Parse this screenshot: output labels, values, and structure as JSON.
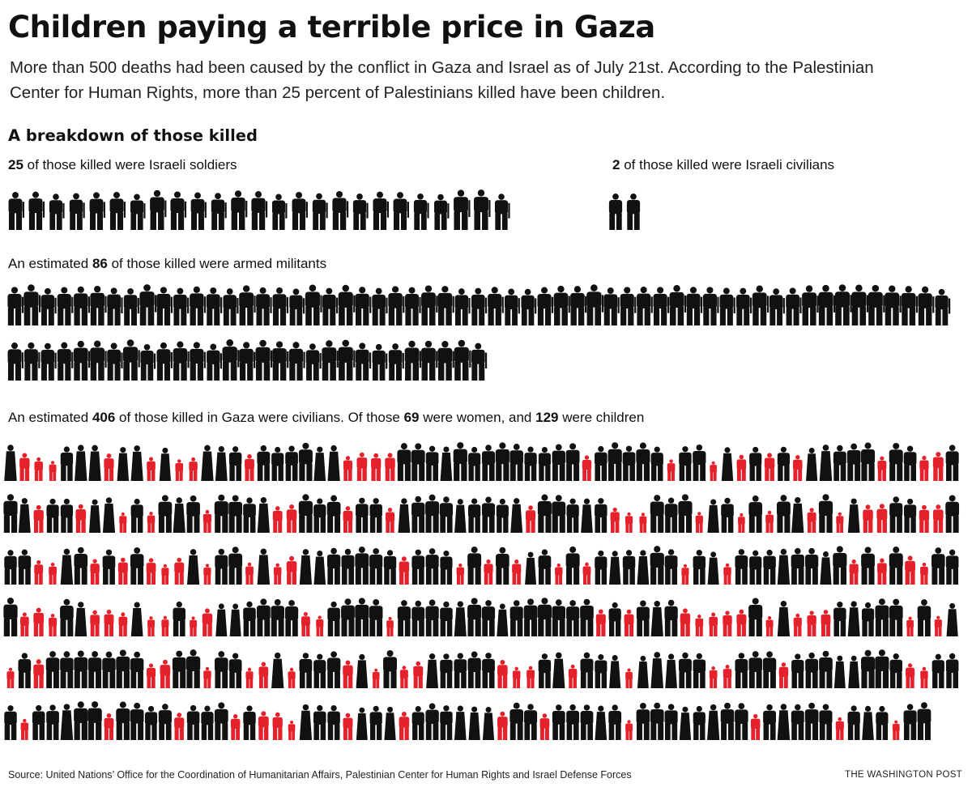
{
  "title": "Children paying a terrible price in Gaza",
  "subtitle_lines": [
    "More than 500 deaths had been caused by the conflict in Gaza and Israel as of July 21st. According to the Palestinian",
    "Center for Human Rights, more than 25 percent of Palestinians killed have been children."
  ],
  "section_heading": "A breakdown of those killed",
  "groups": {
    "soldiers": {
      "count": "25",
      "text": " of those killed were Israeli soldiers"
    },
    "israeli_civilians": {
      "count": "2",
      "text": " of those killed were Israeli civilians"
    },
    "militants": {
      "prefix": "An estimated ",
      "count": "86",
      "text": " of those killed were armed militants"
    },
    "gaza_civilians": {
      "prefix": "An estimated ",
      "count": "406",
      "text1": " of those killed in Gaza were civilians. Of those ",
      "women": "69",
      "text2": " were women, and ",
      "children": "129",
      "text3": " were children"
    }
  },
  "chart_data": {
    "type": "pictograph",
    "title": "A breakdown of those killed",
    "unit": "1 figure = 1 person",
    "categories": [
      "Israeli soldiers",
      "Israeli civilians",
      "Armed militants",
      "Gaza civilians (adults)",
      "Gaza civilians (children)"
    ],
    "values": [
      25,
      2,
      86,
      277,
      129
    ],
    "gaza_civilians_total": 406,
    "gaza_civilians_women": 69,
    "gaza_civilians_children": 129,
    "colors": {
      "adult": "#111111",
      "child": "#e5222b"
    }
  },
  "footer": {
    "source": "Source: United Nations’ Office for the Coordination of Humanitarian Affairs, Palestinian Center for Human Rights and Israel Defense Forces",
    "brand": "THE WASHINGTON POST"
  }
}
